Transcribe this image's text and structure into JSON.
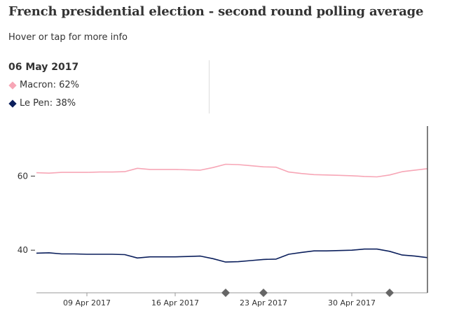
{
  "header": {
    "title": "French presidential election - second round polling average",
    "subtitle": "Hover or tap for more info"
  },
  "info": {
    "date": "06 May 2017",
    "rows": [
      {
        "label": "Macron: 62%",
        "color": "#f7a6b6"
      },
      {
        "label": "Le Pen: 38%",
        "color": "#0b1f5c"
      }
    ]
  },
  "chart_data": {
    "type": "line",
    "x": [
      "2017-04-05",
      "2017-04-06",
      "2017-04-07",
      "2017-04-08",
      "2017-04-09",
      "2017-04-10",
      "2017-04-11",
      "2017-04-12",
      "2017-04-13",
      "2017-04-14",
      "2017-04-15",
      "2017-04-16",
      "2017-04-17",
      "2017-04-18",
      "2017-04-19",
      "2017-04-20",
      "2017-04-21",
      "2017-04-22",
      "2017-04-23",
      "2017-04-24",
      "2017-04-25",
      "2017-04-26",
      "2017-04-27",
      "2017-04-28",
      "2017-04-29",
      "2017-04-30",
      "2017-05-01",
      "2017-05-02",
      "2017-05-03",
      "2017-05-04",
      "2017-05-05",
      "2017-05-06"
    ],
    "series": [
      {
        "name": "Macron",
        "color": "#f7a6b6",
        "values": [
          60.9,
          60.8,
          61.0,
          61.0,
          61.0,
          61.1,
          61.1,
          61.2,
          62.1,
          61.8,
          61.8,
          61.8,
          61.7,
          61.6,
          62.3,
          63.2,
          63.1,
          62.8,
          62.5,
          62.4,
          61.1,
          60.7,
          60.4,
          60.3,
          60.2,
          60.1,
          59.9,
          59.8,
          60.3,
          61.2,
          61.6,
          62.0
        ]
      },
      {
        "name": "Le Pen",
        "color": "#0b1f5c",
        "values": [
          39.2,
          39.3,
          39.0,
          39.0,
          38.9,
          38.9,
          38.9,
          38.8,
          37.9,
          38.2,
          38.2,
          38.2,
          38.3,
          38.4,
          37.7,
          36.8,
          36.9,
          37.2,
          37.5,
          37.6,
          38.9,
          39.4,
          39.8,
          39.8,
          39.9,
          40.0,
          40.3,
          40.3,
          39.7,
          38.7,
          38.4,
          38.0
        ]
      }
    ],
    "y_ticks": [
      40,
      60
    ],
    "ylim": [
      28.5,
      73.5
    ],
    "x_ticks": [
      {
        "date": "2017-04-09",
        "label": "09 Apr 2017"
      },
      {
        "date": "2017-04-16",
        "label": "16 Apr 2017"
      },
      {
        "date": "2017-04-23",
        "label": "23 Apr 2017"
      },
      {
        "date": "2017-04-30",
        "label": "30 Apr 2017"
      }
    ],
    "event_markers": [
      "2017-04-20",
      "2017-04-23",
      "2017-05-03"
    ],
    "hover_date": "2017-05-06",
    "grid": false
  }
}
